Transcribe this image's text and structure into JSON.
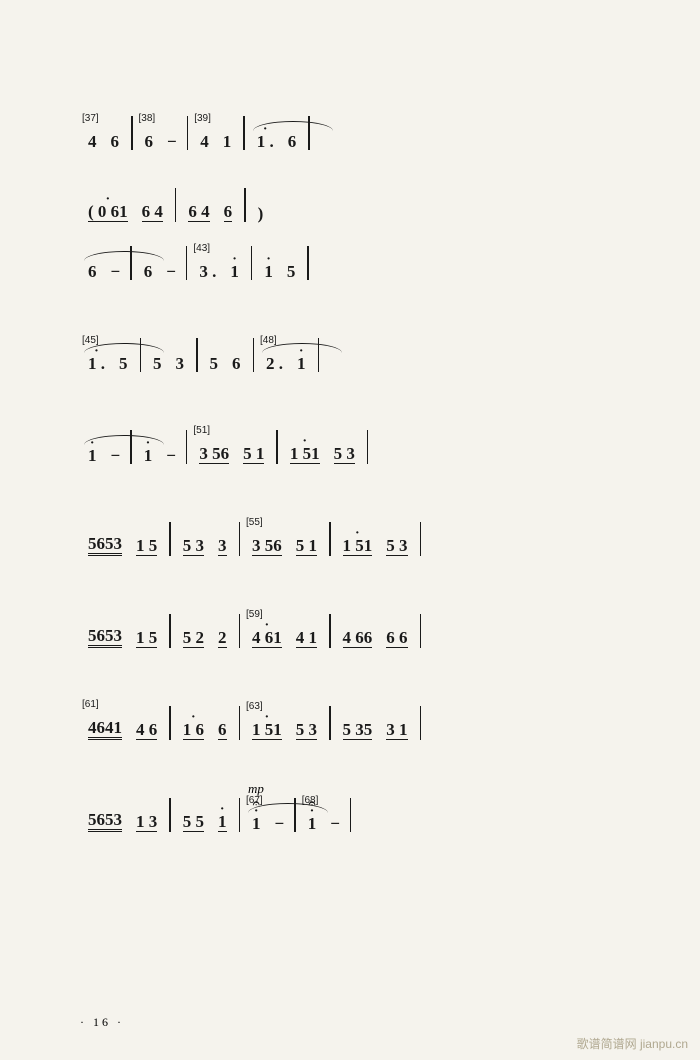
{
  "page_number": "· 16 ·",
  "watermark": "歌谱简谱网 jianpu.cn",
  "background_color": "#f5f3ed",
  "text_color": "#1a1a1a",
  "note_fontsize": 17,
  "label_fontsize": 10,
  "rows": [
    {
      "measures": [
        {
          "label": "[37]",
          "notes": [
            "4",
            "6"
          ]
        },
        {
          "label": "[38]",
          "notes": [
            "6",
            "−"
          ]
        },
        {
          "label": "[39]",
          "notes": [
            "4",
            "1"
          ]
        },
        {
          "notes": [
            "i .",
            "6"
          ],
          "slur": true
        }
      ]
    },
    {
      "paren_row": true,
      "measures": [
        {
          "notes": [
            "( 0 6i",
            "6 4"
          ],
          "underline": true
        },
        {
          "notes": [
            "6 4",
            "6"
          ],
          "underline": true
        },
        {
          "notes": [
            ")"
          ]
        }
      ]
    },
    {
      "measures": [
        {
          "notes": [
            "6",
            "−"
          ],
          "slur": true
        },
        {
          "notes": [
            "6",
            "−"
          ]
        },
        {
          "label": "[43]",
          "notes": [
            "3 .",
            "i"
          ]
        },
        {
          "notes": [
            "i",
            "5"
          ]
        }
      ]
    },
    {
      "measures": [
        {
          "label": "[45]",
          "notes": [
            "i .",
            "5"
          ],
          "slur": true
        },
        {
          "notes": [
            "5",
            "3"
          ]
        },
        {
          "notes": [
            "5",
            "6"
          ]
        },
        {
          "label": "[48]",
          "notes": [
            "2 .",
            "i"
          ],
          "slur": true
        }
      ]
    },
    {
      "measures": [
        {
          "notes": [
            "i",
            "−"
          ],
          "slur": true
        },
        {
          "notes": [
            "i",
            "−"
          ]
        },
        {
          "label": "[51]",
          "notes": [
            "3 56",
            "5 1"
          ],
          "underline": true
        },
        {
          "notes": [
            "i 5i",
            "5 3"
          ],
          "underline": true
        }
      ]
    },
    {
      "measures": [
        {
          "notes": [
            "5653",
            "1 5"
          ],
          "dbl": true
        },
        {
          "notes": [
            "5 3",
            "3"
          ],
          "underline": true
        },
        {
          "label": "[55]",
          "notes": [
            "3 56",
            "5 1"
          ],
          "underline": true
        },
        {
          "notes": [
            "i 5i",
            "5 3"
          ],
          "underline": true
        }
      ]
    },
    {
      "measures": [
        {
          "notes": [
            "5653",
            "1 5"
          ],
          "dbl": true
        },
        {
          "notes": [
            "5 2",
            "2"
          ],
          "underline": true
        },
        {
          "label": "[59]",
          "notes": [
            "4 6i",
            "4 1"
          ],
          "underline": true
        },
        {
          "notes": [
            "4 66",
            "6 6"
          ],
          "underline": true
        }
      ]
    },
    {
      "measures": [
        {
          "label": "[61]",
          "notes": [
            "4641",
            "4 6"
          ],
          "dbl": true
        },
        {
          "notes": [
            "i 6",
            "6"
          ],
          "underline": true
        },
        {
          "label": "[63]",
          "notes": [
            "i 5i",
            "5 3"
          ],
          "underline": true
        },
        {
          "notes": [
            "5 35",
            "3 1"
          ],
          "underline": true
        }
      ]
    },
    {
      "measures": [
        {
          "notes": [
            "5653",
            "1 3"
          ],
          "dbl": true
        },
        {
          "notes": [
            "5 5",
            "i"
          ],
          "underline": true
        },
        {
          "label": "[67]",
          "dyn": "mp",
          "notes": [
            "i",
            "−"
          ],
          "fermata": true,
          "slur": true
        },
        {
          "label": "[68]",
          "notes": [
            "i",
            "−"
          ],
          "fermata": true
        }
      ]
    }
  ]
}
